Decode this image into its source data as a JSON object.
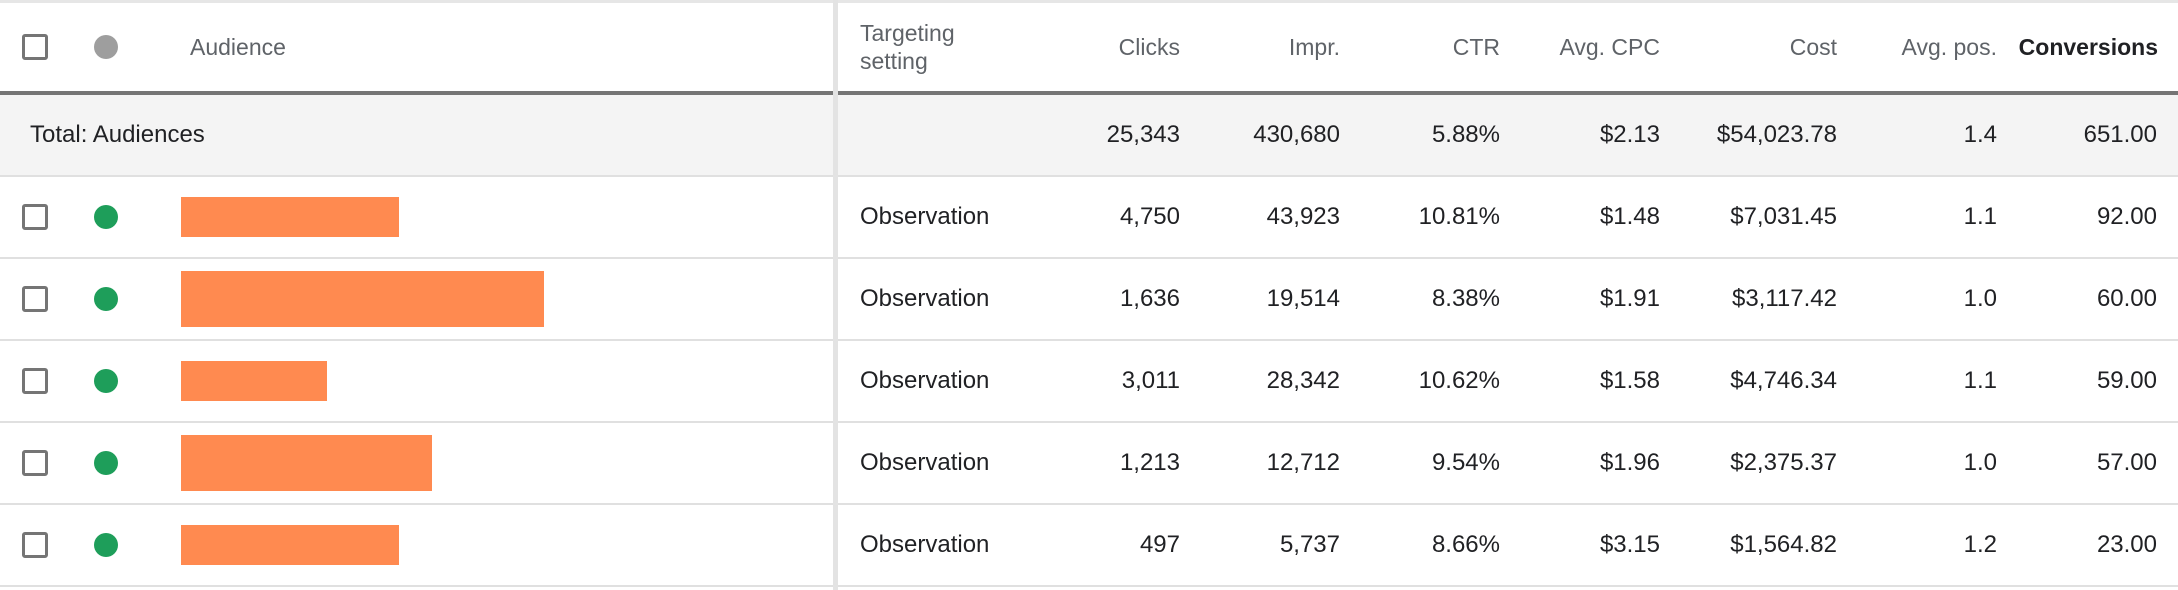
{
  "header": {
    "audience": "Audience",
    "targeting_line1": "Targeting",
    "targeting_line2": "setting",
    "clicks": "Clicks",
    "impr": "Impr.",
    "ctr": "CTR",
    "avg_cpc": "Avg. CPC",
    "cost": "Cost",
    "avg_pos": "Avg. pos.",
    "conversions": "Conversions"
  },
  "total": {
    "label": "Total: Audiences",
    "clicks": "25,343",
    "impr": "430,680",
    "ctr": "5.88%",
    "avg_cpc": "$2.13",
    "cost": "$54,023.78",
    "avg_pos": "1.4",
    "conversions": "651.00"
  },
  "rows": [
    {
      "targeting": "Observation",
      "clicks": "4,750",
      "impr": "43,923",
      "ctr": "10.81%",
      "avg_cpc": "$1.48",
      "cost": "$7,031.45",
      "avg_pos": "1.1",
      "conversions": "92.00"
    },
    {
      "targeting": "Observation",
      "clicks": "1,636",
      "impr": "19,514",
      "ctr": "8.38%",
      "avg_cpc": "$1.91",
      "cost": "$3,117.42",
      "avg_pos": "1.0",
      "conversions": "60.00"
    },
    {
      "targeting": "Observation",
      "clicks": "3,011",
      "impr": "28,342",
      "ctr": "10.62%",
      "avg_cpc": "$1.58",
      "cost": "$4,746.34",
      "avg_pos": "1.1",
      "conversions": "59.00"
    },
    {
      "targeting": "Observation",
      "clicks": "1,213",
      "impr": "12,712",
      "ctr": "9.54%",
      "avg_cpc": "$1.96",
      "cost": "$2,375.37",
      "avg_pos": "1.0",
      "conversions": "57.00"
    },
    {
      "targeting": "Observation",
      "clicks": "497",
      "impr": "5,737",
      "ctr": "8.66%",
      "avg_cpc": "$3.15",
      "cost": "$1,564.82",
      "avg_pos": "1.2",
      "conversions": "23.00"
    }
  ],
  "colors": {
    "status_enabled": "#1e9e5a",
    "status_header": "#9e9e9e",
    "redaction": "#ff8a50"
  },
  "icons": {
    "checkbox": "checkbox-icon",
    "status": "status-dot-icon"
  }
}
